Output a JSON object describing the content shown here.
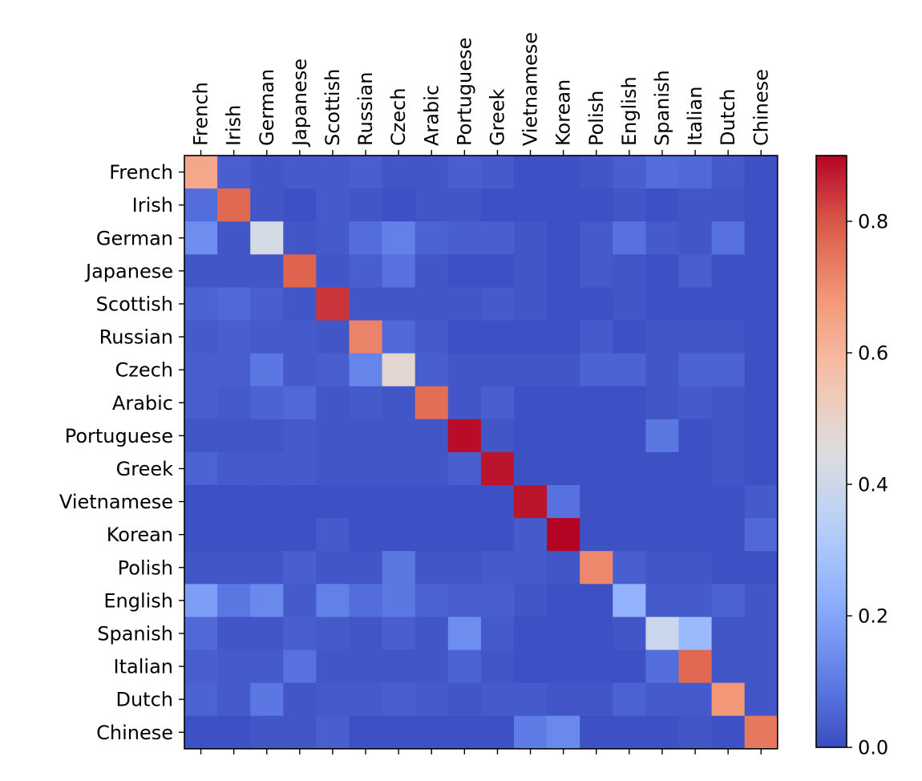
{
  "chart_data": {
    "type": "heatmap",
    "title": "",
    "xlabel": "",
    "ylabel": "",
    "x_categories": [
      "French",
      "Irish",
      "German",
      "Japanese",
      "Scottish",
      "Russian",
      "Czech",
      "Arabic",
      "Portuguese",
      "Greek",
      "Vietnamese",
      "Korean",
      "Polish",
      "English",
      "Spanish",
      "Italian",
      "Dutch",
      "Chinese"
    ],
    "y_categories": [
      "French",
      "Irish",
      "German",
      "Japanese",
      "Scottish",
      "Russian",
      "Czech",
      "Arabic",
      "Portuguese",
      "Greek",
      "Vietnamese",
      "Korean",
      "Polish",
      "English",
      "Spanish",
      "Italian",
      "Dutch",
      "Chinese"
    ],
    "values": [
      [
        0.64,
        0.04,
        0.02,
        0.03,
        0.03,
        0.04,
        0.02,
        0.02,
        0.04,
        0.03,
        0.01,
        0.01,
        0.02,
        0.04,
        0.07,
        0.06,
        0.03,
        0.01
      ],
      [
        0.07,
        0.77,
        0.02,
        0.01,
        0.03,
        0.02,
        0.01,
        0.02,
        0.02,
        0.01,
        0.01,
        0.01,
        0.01,
        0.02,
        0.01,
        0.02,
        0.02,
        0.01
      ],
      [
        0.14,
        0.02,
        0.42,
        0.02,
        0.03,
        0.07,
        0.11,
        0.05,
        0.04,
        0.04,
        0.02,
        0.01,
        0.03,
        0.08,
        0.03,
        0.02,
        0.08,
        0.01
      ],
      [
        0.02,
        0.02,
        0.02,
        0.78,
        0.02,
        0.04,
        0.08,
        0.02,
        0.01,
        0.01,
        0.02,
        0.01,
        0.03,
        0.02,
        0.01,
        0.04,
        0.01,
        0.01
      ],
      [
        0.05,
        0.06,
        0.04,
        0.02,
        0.84,
        0.02,
        0.02,
        0.02,
        0.02,
        0.03,
        0.02,
        0.01,
        0.01,
        0.02,
        0.01,
        0.01,
        0.01,
        0.01
      ],
      [
        0.03,
        0.04,
        0.03,
        0.03,
        0.02,
        0.72,
        0.06,
        0.03,
        0.01,
        0.01,
        0.01,
        0.01,
        0.03,
        0.01,
        0.02,
        0.02,
        0.02,
        0.01
      ],
      [
        0.04,
        0.04,
        0.09,
        0.03,
        0.04,
        0.12,
        0.48,
        0.04,
        0.02,
        0.02,
        0.02,
        0.02,
        0.05,
        0.05,
        0.02,
        0.05,
        0.05,
        0.01
      ],
      [
        0.04,
        0.03,
        0.05,
        0.06,
        0.02,
        0.03,
        0.02,
        0.76,
        0.02,
        0.04,
        0.01,
        0.01,
        0.01,
        0.01,
        0.02,
        0.03,
        0.02,
        0.01
      ],
      [
        0.02,
        0.02,
        0.02,
        0.03,
        0.02,
        0.02,
        0.02,
        0.02,
        0.89,
        0.02,
        0.01,
        0.01,
        0.01,
        0.01,
        0.09,
        0.01,
        0.02,
        0.01
      ],
      [
        0.05,
        0.03,
        0.03,
        0.03,
        0.02,
        0.02,
        0.02,
        0.02,
        0.04,
        0.88,
        0.01,
        0.01,
        0.01,
        0.01,
        0.01,
        0.01,
        0.02,
        0.01
      ],
      [
        0.01,
        0.01,
        0.01,
        0.01,
        0.01,
        0.01,
        0.01,
        0.01,
        0.01,
        0.01,
        0.88,
        0.08,
        0.01,
        0.01,
        0.01,
        0.01,
        0.01,
        0.03
      ],
      [
        0.01,
        0.01,
        0.01,
        0.01,
        0.03,
        0.01,
        0.01,
        0.01,
        0.01,
        0.01,
        0.03,
        0.9,
        0.01,
        0.01,
        0.01,
        0.01,
        0.01,
        0.06
      ],
      [
        0.02,
        0.02,
        0.02,
        0.04,
        0.02,
        0.02,
        0.09,
        0.02,
        0.02,
        0.03,
        0.03,
        0.02,
        0.71,
        0.04,
        0.02,
        0.02,
        0.01,
        0.01
      ],
      [
        0.18,
        0.09,
        0.13,
        0.03,
        0.11,
        0.07,
        0.09,
        0.05,
        0.04,
        0.04,
        0.02,
        0.01,
        0.01,
        0.24,
        0.03,
        0.03,
        0.05,
        0.02
      ],
      [
        0.06,
        0.02,
        0.02,
        0.04,
        0.03,
        0.02,
        0.04,
        0.02,
        0.14,
        0.03,
        0.01,
        0.01,
        0.01,
        0.02,
        0.39,
        0.26,
        0.02,
        0.02
      ],
      [
        0.04,
        0.03,
        0.03,
        0.08,
        0.02,
        0.02,
        0.02,
        0.02,
        0.05,
        0.02,
        0.01,
        0.01,
        0.01,
        0.01,
        0.07,
        0.77,
        0.02,
        0.02
      ],
      [
        0.05,
        0.03,
        0.09,
        0.02,
        0.03,
        0.03,
        0.04,
        0.03,
        0.02,
        0.03,
        0.03,
        0.02,
        0.02,
        0.05,
        0.03,
        0.03,
        0.68,
        0.02
      ],
      [
        0.01,
        0.01,
        0.02,
        0.02,
        0.04,
        0.01,
        0.01,
        0.01,
        0.01,
        0.01,
        0.1,
        0.13,
        0.01,
        0.01,
        0.01,
        0.02,
        0.01,
        0.74
      ]
    ],
    "colormap": "coolwarm",
    "vmin": 0.0,
    "vmax": 0.9,
    "colorbar": {
      "ticks": [
        0.0,
        0.2,
        0.4,
        0.6,
        0.8
      ],
      "tick_labels": [
        "0.0",
        "0.2",
        "0.4",
        "0.6",
        "0.8"
      ]
    },
    "x_tick_position": "top",
    "grid": false,
    "legend": "none"
  }
}
